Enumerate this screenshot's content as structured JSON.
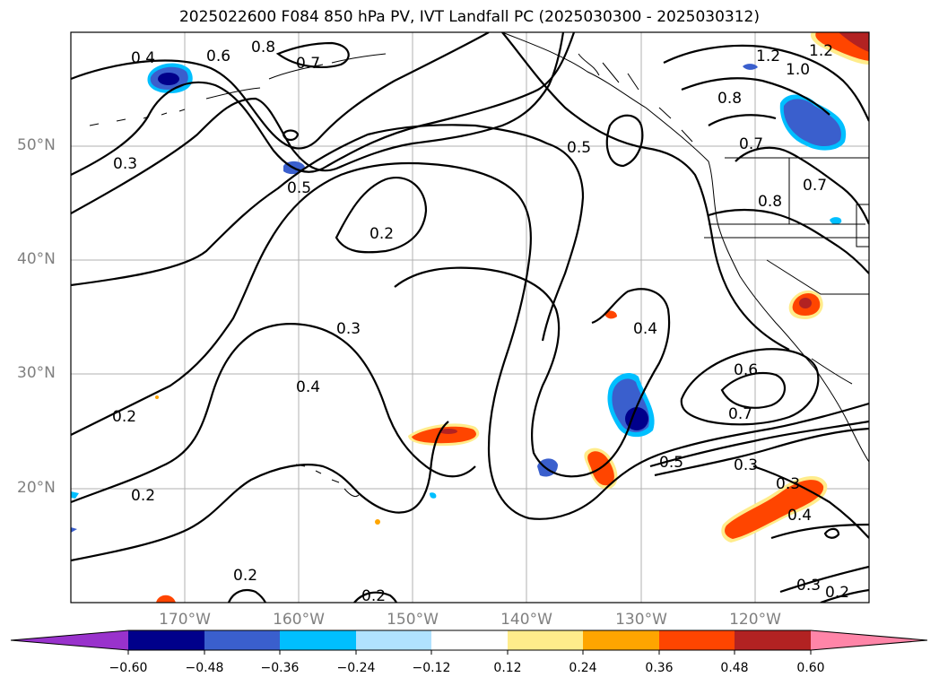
{
  "title": "2025022600 F084 850 hPa PV, IVT Landfall PC (2025030300 - 2025030312)",
  "lat_labels": [
    "50°N",
    "40°N",
    "30°N",
    "20°N"
  ],
  "lon_labels": [
    "170°W",
    "160°W",
    "150°W",
    "140°W",
    "130°W",
    "120°W"
  ],
  "map_extent": {
    "lon_min": -180,
    "lon_max": -110,
    "lat_min": 10,
    "lat_max": 60
  },
  "contour_labels": [
    "0.8",
    "0.4",
    "0.6",
    "0.7",
    "0.3",
    "0.5",
    "0.2",
    "0.3",
    "0.4",
    "0.2",
    "0.2",
    "0.2",
    "0.2",
    "0.5",
    "0.4",
    "0.5",
    "0.6",
    "0.7",
    "0.3",
    "0.3",
    "0.4",
    "0.3",
    "0.2",
    "0.8",
    "0.7",
    "0.8",
    "0.7",
    "1.2",
    "1.0",
    "1.2"
  ],
  "colorbar": {
    "ticks": [
      "−0.60",
      "−0.48",
      "−0.36",
      "−0.24",
      "−0.12",
      "0.12",
      "0.24",
      "0.36",
      "0.48",
      "0.60"
    ],
    "colors": [
      "#9932cc",
      "#00008b",
      "#3a5fcd",
      "#00bfff",
      "#b0e2ff",
      "#ffffff",
      "#ffec8b",
      "#ffa500",
      "#ff4500",
      "#b22222",
      "#ff85a8"
    ]
  }
}
